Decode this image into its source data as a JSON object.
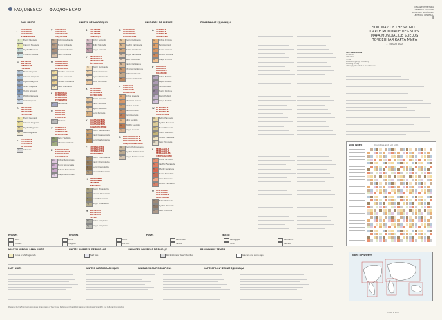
{
  "header": {
    "title": "FAO/UNESCO — ФАО/ЮНЕСКО",
    "sheet_info": [
      "ОБЩИЕ ЛЕГЕНДЫ",
      "GENERAL LEGEND",
      "LÉGENDE GÉNÉRALE",
      "LEYENDA GENERAL"
    ],
    "page": "I"
  },
  "column_headers": [
    "SOIL UNITS",
    "UNITÉS PÉDOLOGIQUES",
    "UNIDADES DE SUELOS",
    "ПОЧВЕННЫЕ ЕДИНИЦЫ"
  ],
  "map_title": {
    "en": "SOIL MAP OF THE WORLD",
    "fr": "CARTE MONDIALE DES SOLS",
    "es": "MAPA MUNDIAL DE SUELOS",
    "ru": "ПОЧВЕННАЯ КАРТА МИРА",
    "scale": "1 : 5 000 000"
  },
  "columns": [
    {
      "groups": [
        {
          "letter": "J",
          "name": "FLUVISOLS\nFLUVISOLS\nFLUVISOLES\nФЛЮВИСОЛИ",
          "units": [
            {
              "code": "Je",
              "color": "#dfe8c8",
              "label": "Eutric Fluvisols"
            },
            {
              "code": "Jc",
              "color": "#e6e8a8",
              "label": "Calcaric Fluvisols"
            },
            {
              "code": "Jd",
              "color": "#c8dcd8",
              "label": "Dystric Fluvisols"
            },
            {
              "code": "Jt",
              "color": "#cfe2e4",
              "label": "Thionic Fluvisols"
            }
          ]
        },
        {
          "letter": "G",
          "name": "GLEYSOLS\nGLEYSOLS\nGLEYSOLES\nГЛЕЕВЫЕ",
          "units": [
            {
              "code": "Ge",
              "color": "#b7c8d8",
              "label": "Eutric Gleysols"
            },
            {
              "code": "Gc",
              "color": "#a8c0d8",
              "label": "Calcaric Gleysols"
            },
            {
              "code": "Gd",
              "color": "#9cb0cc",
              "label": "Dystric Gleysols"
            },
            {
              "code": "Gm",
              "color": "#8ea4c4",
              "label": "Mollic Gleysols"
            },
            {
              "code": "Gh",
              "color": "#7e98b8",
              "label": "Humic Gleysols"
            },
            {
              "code": "Gp",
              "color": "#b0c0d4",
              "label": "Plinthic Gleysols"
            },
            {
              "code": "Gx",
              "color": "#d0dce8",
              "label": "Gelic Gleysols"
            }
          ]
        },
        {
          "letter": "R",
          "name": "REGOSOLS\nREGOSOLS\nREGOSOLES\nРЕГОСОЛИ",
          "units": [
            {
              "code": "Re",
              "color": "#f0e8b0",
              "label": "Eutric Regosols"
            },
            {
              "code": "Rc",
              "color": "#e8dc98",
              "label": "Calcaric Regosols"
            },
            {
              "code": "Rd",
              "color": "#e0d4a0",
              "label": "Dystric Regosols"
            },
            {
              "code": "Rx",
              "color": "#efe8d0",
              "label": "Gelic Regosols"
            }
          ]
        },
        {
          "letter": "L",
          "name": "LITHOSOLS\nLITHOSOLS\nLITOSOLES\nЛИТОСОЛИ",
          "units": [
            {
              "code": "I",
              "color": "#d8d8d8",
              "label": "Lithosols"
            }
          ]
        }
      ]
    },
    {
      "groups": [
        {
          "letter": "T",
          "name": "ANDOSOLS\nANDOSOLS\nANDOSOLES\nАНДОСОЛИ",
          "units": [
            {
              "code": "To",
              "color": "#c8b098",
              "label": "Ochric Andosols"
            },
            {
              "code": "Tm",
              "color": "#b89c84",
              "label": "Mollic Andosols"
            },
            {
              "code": "Th",
              "color": "#a88c78",
              "label": "Humic Andosols"
            },
            {
              "code": "Tv",
              "color": "#d8c0a8",
              "label": "Vitric Andosols"
            }
          ]
        },
        {
          "letter": "Q",
          "name": "ARENOSOLS\nARENOSOLS\nARENOSOLES\nАРЕНОСОЛИ",
          "units": [
            {
              "code": "Qc",
              "color": "#f0dca0",
              "label": "Cambic Arenosols"
            },
            {
              "code": "Ql",
              "color": "#f4e4b0",
              "label": "Luvic Arenosols"
            },
            {
              "code": "Qf",
              "color": "#ecd090",
              "label": "Ferralic Arenosols"
            },
            {
              "code": "Qa",
              "color": "#f8ecc8",
              "label": "Albic Arenosols"
            }
          ]
        },
        {
          "letter": "E",
          "name": "RENDZINAS\nRENDZINES\nRENDZINAS\nРЕНДЗИНЫ",
          "units": [
            {
              "code": "E",
              "color": "#a0a4c0",
              "label": "Rendzinas"
            }
          ]
        },
        {
          "letter": "U",
          "name": "RANKERS\nRANKERS\nRANKERS\nРАНКЕРЫ",
          "units": [
            {
              "code": "U",
              "color": "#b8b8b8",
              "label": "Rankers"
            }
          ]
        },
        {
          "letter": "V",
          "name": "VERTISOLS\nVERTISOLS\nVERTISOLES\nВЕРТИСОЛИ",
          "units": [
            {
              "code": "Vp",
              "color": "#8c9c70",
              "label": "Pellic Vertisols"
            },
            {
              "code": "Vc",
              "color": "#a0ac80",
              "label": "Chromic Vertisols"
            }
          ]
        },
        {
          "letter": "Z",
          "name": "SOLONCHAKS\nSOLONTCHAKS\nSOLONCHAKS\nСОЛОНЧАКИ",
          "units": [
            {
              "code": "Zo",
              "color": "#e0c8e0",
              "label": "Orthic Solonchaks"
            },
            {
              "code": "Zm",
              "color": "#d4b4d4",
              "label": "Mollic Solonchaks"
            },
            {
              "code": "Zt",
              "color": "#c8a8c8",
              "label": "Takyric Solonchaks"
            },
            {
              "code": "Zg",
              "color": "#e8d4e8",
              "label": "Gleyic Solonchaks"
            }
          ]
        }
      ]
    },
    {
      "groups": [
        {
          "letter": "S",
          "name": "SOLONETZ\nSOLONETZ\nSOLONETZ\nСОЛОНЦЫ",
          "units": [
            {
              "code": "So",
              "color": "#d8c0c8",
              "label": "Orthic Solonetz"
            },
            {
              "code": "Sm",
              "color": "#ccacb8",
              "label": "Mollic Solonetz"
            },
            {
              "code": "Sg",
              "color": "#c09ca8",
              "label": "Gleyic Solonetz"
            }
          ]
        },
        {
          "letter": "Y",
          "name": "YERMOSOLS\nYERMOSOLS\nYERMOSOLES\nЙЕРМОСОЛИ",
          "units": [
            {
              "code": "Yh",
              "color": "#f4e0c0",
              "label": "Haplic Yermosols"
            },
            {
              "code": "Yk",
              "color": "#f0d4ac",
              "label": "Calcic Yermosols"
            },
            {
              "code": "Yy",
              "color": "#f8e8d0",
              "label": "Gypsic Yermosols"
            },
            {
              "code": "Yl",
              "color": "#ecc89c",
              "label": "Luvic Yermosols"
            }
          ]
        },
        {
          "letter": "X",
          "name": "XEROSOLS\nXEROSOLS\nXEROSOLES\nКСЕРОСОЛИ",
          "units": [
            {
              "code": "Xh",
              "color": "#e8c8a0",
              "label": "Haplic Xerosols"
            },
            {
              "code": "Xk",
              "color": "#e0bc90",
              "label": "Calcic Xerosols"
            },
            {
              "code": "Xy",
              "color": "#f0d8b8",
              "label": "Gypsic Xerosols"
            },
            {
              "code": "Xl",
              "color": "#d8b080",
              "label": "Luvic Xerosols"
            }
          ]
        },
        {
          "letter": "K",
          "name": "KASTANOZEMS\nKASTANOZEMS\nKASTANOZEMS\nКАШТАНОЗЕМЫ",
          "units": [
            {
              "code": "Kh",
              "color": "#c8a070",
              "label": "Haplic Kastanozems"
            },
            {
              "code": "Kk",
              "color": "#bc9464",
              "label": "Calcic Kastanozems"
            },
            {
              "code": "Kl",
              "color": "#b08858",
              "label": "Luvic Kastanozems"
            }
          ]
        },
        {
          "letter": "C",
          "name": "CHERNOZEMS\nCHERNOZEMS\nCHERNOZEMS\nЧЕРНОЗЕМЫ",
          "units": [
            {
              "code": "Ch",
              "color": "#a08868",
              "label": "Haplic Chernozems"
            },
            {
              "code": "Ck",
              "color": "#947c5c",
              "label": "Calcic Chernozems"
            },
            {
              "code": "Cl",
              "color": "#887050",
              "label": "Luvic Chernozems"
            },
            {
              "code": "Cg",
              "color": "#b09878",
              "label": "Glossic Chernozems"
            }
          ]
        },
        {
          "letter": "H",
          "name": "PHAEOZEMS\nPHAEOZEMS\nFEOZEMS\nФЕОЗЕМЫ",
          "units": [
            {
              "code": "Hh",
              "color": "#a8a080",
              "label": "Haplic Phaeozems"
            },
            {
              "code": "Hc",
              "color": "#9c9474",
              "label": "Calcaric Phaeozems"
            },
            {
              "code": "Hl",
              "color": "#908868",
              "label": "Luvic Phaeozems"
            },
            {
              "code": "Hg",
              "color": "#b4ac8c",
              "label": "Gleyic Phaeozems"
            }
          ]
        },
        {
          "letter": "M",
          "name": "GREYZEMS\nGREYZEMS\nGREYZEMS\nСЕРЫЕ",
          "units": [
            {
              "code": "Mo",
              "color": "#a8a8a0",
              "label": "Orthic Greyzems"
            },
            {
              "code": "Mg",
              "color": "#b8b8b0",
              "label": "Gleyic Greyzems"
            }
          ]
        }
      ]
    },
    {
      "groups": [
        {
          "letter": "B",
          "name": "CAMBISOLS\nCAMBISOLS\nCAMBISOLES\nКАМБИСОЛИ",
          "units": [
            {
              "code": "Be",
              "color": "#e8c8a0",
              "label": "Eutric Cambisols"
            },
            {
              "code": "Bd",
              "color": "#dcb890",
              "label": "Dystric Cambisols"
            },
            {
              "code": "Bh",
              "color": "#d0a880",
              "label": "Humic Cambisols"
            },
            {
              "code": "Bg",
              "color": "#e0c8b0",
              "label": "Gleyic Cambisols"
            },
            {
              "code": "Bx",
              "color": "#f0dcc8",
              "label": "Gelic Cambisols"
            },
            {
              "code": "Bk",
              "color": "#d8b898",
              "label": "Calcic Cambisols"
            },
            {
              "code": "Bc",
              "color": "#c89870",
              "label": "Chromic Cambisols"
            },
            {
              "code": "Bv",
              "color": "#c4a888",
              "label": "Vertic Cambisols"
            },
            {
              "code": "Bf",
              "color": "#bc8860",
              "label": "Ferralic Cambisols"
            }
          ]
        },
        {
          "letter": "L",
          "name": "LUVISOLS\nLUVISOLS\nLUVISOLES\nЛЮВИСОЛИ",
          "units": [
            {
              "code": "Lo",
              "color": "#e0a878",
              "label": "Orthic Luvisols"
            },
            {
              "code": "Lc",
              "color": "#d89868",
              "label": "Chromic Luvisols"
            },
            {
              "code": "Lk",
              "color": "#d0a070",
              "label": "Calcic Luvisols"
            },
            {
              "code": "Lv",
              "color": "#c89068",
              "label": "Vertic Luvisols"
            },
            {
              "code": "Lf",
              "color": "#c08058",
              "label": "Ferric Luvisols"
            },
            {
              "code": "La",
              "color": "#e8b888",
              "label": "Albic Luvisols"
            },
            {
              "code": "Lp",
              "color": "#b87850",
              "label": "Plinthic Luvisols"
            },
            {
              "code": "Lg",
              "color": "#d8b090",
              "label": "Gleyic Luvisols"
            }
          ]
        },
        {
          "letter": "D",
          "name": "PODZOLUVISOLS\nPODZOLUVISOLS\nPODZOLUVISOLES\nПОДЗОЛЮВИСОЛИ",
          "units": [
            {
              "code": "De",
              "color": "#c8b8a0",
              "label": "Eutric Podzoluvisols"
            },
            {
              "code": "Dd",
              "color": "#bcaa90",
              "label": "Dystric Podzoluvisols"
            },
            {
              "code": "Dg",
              "color": "#d4c4b0",
              "label": "Gleyic Podzoluvisols"
            }
          ]
        }
      ]
    },
    {
      "groups": [
        {
          "letter": "A",
          "name": "ACRISOLS\nACRISOLS\nACRISOLES\nАКРИСОЛИ",
          "units": [
            {
              "code": "Ao",
              "color": "#e8b078",
              "label": "Orthic Acrisols"
            },
            {
              "code": "Af",
              "color": "#e0a068",
              "label": "Ferric Acrisols"
            },
            {
              "code": "Ah",
              "color": "#d89460",
              "label": "Humic Acrisols"
            },
            {
              "code": "Ap",
              "color": "#d08858",
              "label": "Plinthic Acrisols"
            },
            {
              "code": "Ag",
              "color": "#f0c090",
              "label": "Gleyic Acrisols"
            }
          ]
        },
        {
          "letter": "P",
          "name": "PODZOLS\nPODZOLS\nPODZOLES\nПОДЗОЛЫ",
          "units": [
            {
              "code": "Po",
              "color": "#b8a8c0",
              "label": "Orthic Podzols"
            },
            {
              "code": "Pl",
              "color": "#ac9cb4",
              "label": "Leptic Podzols"
            },
            {
              "code": "Pf",
              "color": "#a090a8",
              "label": "Ferric Podzols"
            },
            {
              "code": "Ph",
              "color": "#94849c",
              "label": "Humic Podzols"
            },
            {
              "code": "Pp",
              "color": "#c4b4cc",
              "label": "Placic Podzols"
            },
            {
              "code": "Pg",
              "color": "#d0c0d8",
              "label": "Gleyic Podzols"
            }
          ]
        },
        {
          "letter": "W",
          "name": "PLANOSOLS\nPLANOSOLS\nPLANOSOLES\nПЛАНОСОЛИ",
          "units": [
            {
              "code": "We",
              "color": "#e8d8a8",
              "label": "Eutric Planosols"
            },
            {
              "code": "Wd",
              "color": "#dccc98",
              "label": "Dystric Planosols"
            },
            {
              "code": "Wm",
              "color": "#d0c088",
              "label": "Mollic Planosols"
            },
            {
              "code": "Wh",
              "color": "#c4b478",
              "label": "Humic Planosols"
            },
            {
              "code": "Ws",
              "color": "#f0e4c0",
              "label": "Solodic Planosols"
            },
            {
              "code": "Wx",
              "color": "#e4dcc8",
              "label": "Gelic Planosols"
            }
          ]
        },
        {
          "letter": "F",
          "name": "FERRALSOLS\nFERRALSOLS\nFERRALSOLES\nФЕРРАЛЬСОЛИ",
          "units": [
            {
              "code": "Fo",
              "color": "#e89070",
              "label": "Orthic Ferralsols"
            },
            {
              "code": "Fx",
              "color": "#e07c60",
              "label": "Xanthic Ferralsols"
            },
            {
              "code": "Fr",
              "color": "#d86850",
              "label": "Rhodic Ferralsols"
            },
            {
              "code": "Fh",
              "color": "#c87058",
              "label": "Humic Ferralsols"
            },
            {
              "code": "Fa",
              "color": "#f0a888",
              "label": "Acric Ferralsols"
            },
            {
              "code": "Fp",
              "color": "#d88068",
              "label": "Plinthic Ferralsols"
            }
          ]
        },
        {
          "letter": "O",
          "name": "HISTOSOLS\nHISTOSOLS\nHISTOSOLES\nГИСТОСОЛИ",
          "units": [
            {
              "code": "Oe",
              "color": "#9c8878",
              "label": "Eutric Histosols"
            },
            {
              "code": "Od",
              "color": "#8c7868",
              "label": "Dystric Histosols"
            },
            {
              "code": "Ox",
              "color": "#ac9888",
              "label": "Gelic Histosols"
            }
          ]
        }
      ]
    }
  ],
  "phases": {
    "labels": [
      "PHASES",
      "PHASES",
      "FASES",
      "ФАЗЫ"
    ],
    "items": [
      "Stony",
      "Lithic",
      "Petric",
      "Petrocalcic",
      "Petrogypsic",
      "Petroferric",
      "Phreatic",
      "Fragipan",
      "Duripan",
      "Saline",
      "Sodic",
      "Cerrado"
    ]
  },
  "misc": {
    "labels": [
      "MISCELLANEOUS LAND UNITS",
      "UNITÉS DIVERSES DE PAYSAGE",
      "UNIDADES DIVERSAS DE PAISAJE",
      "РАЗЛИЧНЫЕ ЗЕМЛИ"
    ],
    "items": [
      "Dunes or shifting sands",
      "Salt flats",
      "Rock debris or desert detritus",
      "Glaciers and snow caps"
    ]
  },
  "map_units": {
    "labels": [
      "MAP UNITS",
      "UNITÉS CARTOGRAPHIQUES",
      "UNIDADES CARTOGRÁFICAS",
      "КАРТОГРАФИЧЕСКИЕ ЕДИНИЦЫ"
    ]
  },
  "texture": {
    "label": "TEXTURAL CLASS",
    "classes": [
      "1 Coarse",
      "2 Medium",
      "3 Fine"
    ],
    "slope": [
      "a Level to gently undulating",
      "b Rolling to hilly",
      "c Steeply dissected to mountainous"
    ]
  },
  "table": {
    "title": "SOIL INDEX",
    "subtitle": "Countries and soil units"
  },
  "inset": {
    "title": "INDEX OF SHEETS"
  },
  "footer": {
    "left": "Prepared by the Food and Agriculture Organization of the United Nations and the United Nations Educational, Scientific and Cultural Organization",
    "right": "Printed in 1978"
  }
}
